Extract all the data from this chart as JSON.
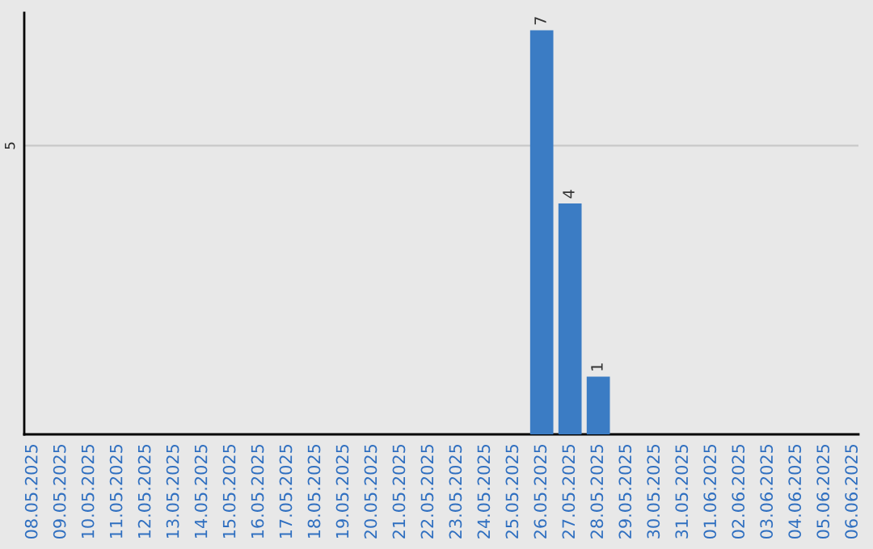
{
  "chart_data": {
    "type": "bar",
    "categories": [
      "08.05.2025",
      "09.05.2025",
      "10.05.2025",
      "11.05.2025",
      "12.05.2025",
      "13.05.2025",
      "14.05.2025",
      "15.05.2025",
      "16.05.2025",
      "17.05.2025",
      "18.05.2025",
      "19.05.2025",
      "20.05.2025",
      "21.05.2025",
      "22.05.2025",
      "23.05.2025",
      "24.05.2025",
      "25.05.2025",
      "26.05.2025",
      "27.05.2025",
      "28.05.2025",
      "29.05.2025",
      "30.05.2025",
      "31.05.2025",
      "01.06.2025",
      "02.06.2025",
      "03.06.2025",
      "04.06.2025",
      "05.06.2025",
      "06.06.2025"
    ],
    "values": [
      null,
      null,
      null,
      null,
      null,
      null,
      null,
      null,
      null,
      null,
      null,
      null,
      null,
      null,
      null,
      null,
      null,
      null,
      7,
      4,
      1,
      null,
      null,
      null,
      null,
      null,
      null,
      null,
      null,
      null
    ],
    "color": "#3b7cc4",
    "ylim": [
      0,
      7.3
    ],
    "yticks": [
      5
    ],
    "grid": "y",
    "data_labels": true
  }
}
